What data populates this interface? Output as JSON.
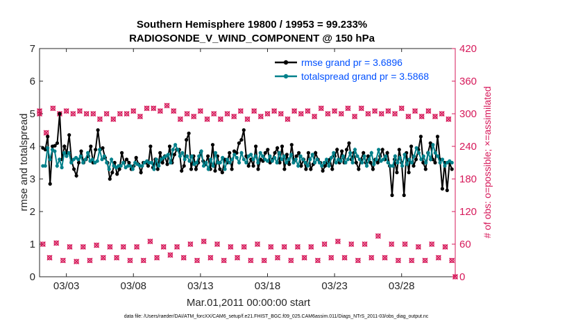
{
  "chart_data": {
    "type": "line",
    "title_line1": "Southern Hemisphere 19800 / 19953 = 99.233%",
    "title_line2": "RADIOSONDE_V_WIND_COMPONENT @ 150 hPa",
    "xlabel": "Mar.01,2011 00:00:00 start",
    "ylabel_left": "rmse and totalspread",
    "ylabel_right": "# of obs: o=possible; ×=assimilated",
    "footnote": "data file: /Users/raeder/DAI/ATM_forcXX/CAM6_setup/f.e21.FHIST_BGC.f09_025.CAM6assim.011/Diags_NTrS_2011-03/obs_diag_output.nc",
    "x_ticks": [
      {
        "day": 3,
        "label": "03/03"
      },
      {
        "day": 8,
        "label": "03/08"
      },
      {
        "day": 13,
        "label": "03/13"
      },
      {
        "day": 18,
        "label": "03/18"
      },
      {
        "day": 23,
        "label": "03/23"
      },
      {
        "day": 28,
        "label": "03/28"
      }
    ],
    "xlim": [
      1,
      32
    ],
    "ylim_left": [
      0,
      7
    ],
    "yticks_left": [
      "0",
      "1",
      "2",
      "3",
      "4",
      "5",
      "6",
      "7"
    ],
    "ylim_right": [
      0,
      420
    ],
    "yticks_right": [
      "0",
      "60",
      "120",
      "180",
      "240",
      "300",
      "360",
      "420"
    ],
    "legend": [
      {
        "label": "rmse grand pr = 3.6896",
        "color": "#000000"
      },
      {
        "label": "totalspread grand pr = 3.5868",
        "color": "#00808a"
      }
    ],
    "series": [
      {
        "name": "rmse",
        "color": "#000000",
        "values": [
          3.95,
          3.9,
          4.3,
          2.85,
          4.0,
          4.02,
          4.1,
          5.0,
          3.6,
          4.0,
          3.8,
          4.35,
          3.55,
          3.3,
          3.1,
          3.5,
          3.85,
          3.5,
          3.6,
          3.7,
          4.0,
          3.5,
          3.9,
          4.5,
          3.9,
          3.95,
          3.65,
          3.5,
          3.0,
          3.2,
          3.5,
          3.15,
          3.3,
          3.8,
          3.5,
          3.6,
          3.5,
          3.3,
          3.4,
          3.65,
          3.45,
          3.2,
          3.5,
          3.5,
          3.4,
          4.0,
          3.35,
          3.6,
          3.3,
          3.8,
          3.5,
          3.7,
          3.45,
          4.0,
          3.5,
          3.75,
          3.9,
          3.9,
          3.25,
          3.4,
          4.2,
          4.4,
          3.3,
          3.7,
          3.3,
          3.5,
          3.8,
          3.55,
          3.45,
          3.7,
          3.3,
          4.05,
          3.25,
          3.7,
          3.3,
          3.2,
          3.6,
          3.5,
          3.8,
          3.3,
          3.85,
          3.8,
          4.1,
          4.2,
          4.5,
          3.7,
          3.4,
          3.6,
          3.4,
          4.0,
          3.3,
          3.6,
          3.55,
          3.8,
          3.9,
          3.5,
          3.6,
          3.8,
          3.95,
          3.5,
          4.0,
          3.3,
          3.75,
          3.45,
          4.05,
          3.55,
          3.7,
          3.8,
          3.4,
          3.6,
          3.3,
          3.8,
          3.3,
          3.45,
          3.8,
          3.6,
          3.5,
          3.25,
          3.4,
          3.5,
          3.6,
          3.3,
          3.7,
          3.9,
          3.5,
          3.85,
          3.5,
          3.9,
          4.1,
          3.6,
          3.8,
          3.5,
          3.3,
          3.6,
          3.8,
          3.5,
          3.7,
          3.5,
          3.3,
          3.6,
          3.5,
          3.7,
          3.9,
          3.6,
          3.8,
          3.4,
          2.5,
          3.6,
          3.2,
          3.9,
          3.5,
          2.5,
          3.8,
          3.2,
          4.0,
          3.4,
          3.6,
          3.9,
          4.3,
          3.5,
          3.3,
          3.8,
          4.1,
          3.6,
          3.5,
          4.3,
          3.6,
          2.7,
          3.5,
          2.65,
          3.5,
          3.3
        ]
      },
      {
        "name": "totalspread",
        "color": "#00808a",
        "values": [
          3.4,
          3.4,
          3.95,
          3.6,
          3.9,
          3.85,
          3.4,
          3.6,
          3.35,
          3.8,
          3.7,
          3.8,
          3.5,
          3.6,
          3.65,
          3.6,
          3.7,
          3.5,
          3.6,
          3.8,
          3.55,
          3.6,
          3.5,
          3.55,
          3.9,
          3.6,
          3.7,
          3.5,
          3.3,
          3.6,
          3.4,
          3.35,
          3.4,
          3.4,
          3.5,
          3.35,
          3.4,
          3.4,
          3.3,
          3.5,
          3.45,
          3.4,
          3.4,
          3.5,
          3.55,
          3.5,
          3.5,
          3.3,
          3.6,
          3.4,
          3.6,
          3.65,
          3.7,
          3.75,
          3.5,
          3.9,
          4.05,
          3.9,
          3.7,
          3.8,
          3.6,
          3.7,
          3.55,
          3.7,
          3.45,
          3.5,
          3.7,
          3.85,
          3.4,
          3.5,
          3.3,
          3.6,
          3.4,
          3.8,
          3.5,
          3.5,
          3.65,
          3.3,
          3.6,
          3.5,
          3.6,
          3.75,
          3.65,
          3.5,
          3.8,
          3.6,
          3.5,
          3.7,
          3.75,
          3.6,
          3.7,
          3.5,
          3.8,
          3.7,
          3.6,
          3.55,
          3.7,
          3.55,
          3.65,
          3.5,
          3.8,
          3.6,
          3.7,
          3.5,
          3.6,
          3.75,
          3.5,
          3.6,
          3.4,
          3.7,
          3.6,
          3.5,
          3.4,
          3.6,
          3.75,
          3.5,
          3.6,
          3.5,
          3.4,
          3.5,
          3.6,
          3.4,
          3.65,
          3.8,
          3.5,
          3.6,
          3.55,
          3.7,
          3.5,
          3.6,
          3.8,
          3.5,
          3.9,
          3.7,
          3.6,
          3.5,
          3.7,
          3.4,
          3.6,
          3.8,
          3.45,
          3.6,
          3.9,
          3.55,
          3.6,
          3.7,
          3.5,
          3.4,
          3.4,
          3.7,
          3.5,
          3.65,
          3.4,
          3.75,
          3.45,
          3.6,
          3.5,
          3.7,
          3.95,
          3.8,
          3.6,
          3.7,
          3.5,
          3.8,
          3.6,
          4.05,
          3.8,
          3.7,
          3.5,
          3.6,
          3.4,
          3.5,
          3.55,
          3.5
        ]
      }
    ],
    "obs_points": [
      {
        "day": 1.0,
        "count": 305
      },
      {
        "day": 1.0,
        "count": 300
      },
      {
        "day": 1.25,
        "count": 60
      },
      {
        "day": 1.5,
        "count": 265
      },
      {
        "day": 1.75,
        "count": 35
      },
      {
        "day": 2.0,
        "count": 310
      },
      {
        "day": 2.25,
        "count": 62
      },
      {
        "day": 2.5,
        "count": 300
      },
      {
        "day": 2.75,
        "count": 30
      },
      {
        "day": 3.0,
        "count": 305
      },
      {
        "day": 3.25,
        "count": 55
      },
      {
        "day": 3.5,
        "count": 300
      },
      {
        "day": 3.75,
        "count": 28
      },
      {
        "day": 4.0,
        "count": 305
      },
      {
        "day": 4.25,
        "count": 55
      },
      {
        "day": 4.5,
        "count": 300
      },
      {
        "day": 4.75,
        "count": 30
      },
      {
        "day": 5.0,
        "count": 300
      },
      {
        "day": 5.25,
        "count": 58
      },
      {
        "day": 5.5,
        "count": 290
      },
      {
        "day": 5.75,
        "count": 35
      },
      {
        "day": 6.0,
        "count": 300
      },
      {
        "day": 6.25,
        "count": 55
      },
      {
        "day": 6.5,
        "count": 290
      },
      {
        "day": 6.75,
        "count": 35
      },
      {
        "day": 7.0,
        "count": 300
      },
      {
        "day": 7.25,
        "count": 55
      },
      {
        "day": 7.5,
        "count": 300
      },
      {
        "day": 7.75,
        "count": 30
      },
      {
        "day": 8.0,
        "count": 305
      },
      {
        "day": 8.25,
        "count": 55
      },
      {
        "day": 8.5,
        "count": 295
      },
      {
        "day": 8.75,
        "count": 30
      },
      {
        "day": 9.0,
        "count": 310
      },
      {
        "day": 9.25,
        "count": 65
      },
      {
        "day": 9.5,
        "count": 310
      },
      {
        "day": 9.75,
        "count": 35
      },
      {
        "day": 10.0,
        "count": 305
      },
      {
        "day": 10.25,
        "count": 55
      },
      {
        "day": 10.5,
        "count": 315
      },
      {
        "day": 10.75,
        "count": 40
      },
      {
        "day": 11.0,
        "count": 305
      },
      {
        "day": 11.25,
        "count": 55
      },
      {
        "day": 11.5,
        "count": 290
      },
      {
        "day": 11.75,
        "count": 35
      },
      {
        "day": 12.0,
        "count": 300
      },
      {
        "day": 12.25,
        "count": 60
      },
      {
        "day": 12.5,
        "count": 295
      },
      {
        "day": 12.75,
        "count": 30
      },
      {
        "day": 13.0,
        "count": 305
      },
      {
        "day": 13.25,
        "count": 65
      },
      {
        "day": 13.5,
        "count": 290
      },
      {
        "day": 13.75,
        "count": 35
      },
      {
        "day": 14.0,
        "count": 300
      },
      {
        "day": 14.25,
        "count": 60
      },
      {
        "day": 14.5,
        "count": 290
      },
      {
        "day": 14.75,
        "count": 30
      },
      {
        "day": 15.0,
        "count": 300
      },
      {
        "day": 15.25,
        "count": 55
      },
      {
        "day": 15.5,
        "count": 295
      },
      {
        "day": 15.75,
        "count": 35
      },
      {
        "day": 16.0,
        "count": 305
      },
      {
        "day": 16.25,
        "count": 55
      },
      {
        "day": 16.5,
        "count": 290
      },
      {
        "day": 16.75,
        "count": 30
      },
      {
        "day": 17.0,
        "count": 305
      },
      {
        "day": 17.25,
        "count": 60
      },
      {
        "day": 17.5,
        "count": 295
      },
      {
        "day": 17.75,
        "count": 30
      },
      {
        "day": 18.0,
        "count": 300
      },
      {
        "day": 18.25,
        "count": 55
      },
      {
        "day": 18.5,
        "count": 305
      },
      {
        "day": 18.75,
        "count": 35
      },
      {
        "day": 19.0,
        "count": 300
      },
      {
        "day": 19.25,
        "count": 55
      },
      {
        "day": 19.5,
        "count": 290
      },
      {
        "day": 19.75,
        "count": 30
      },
      {
        "day": 20.0,
        "count": 305
      },
      {
        "day": 20.25,
        "count": 55
      },
      {
        "day": 20.5,
        "count": 300
      },
      {
        "day": 20.75,
        "count": 35
      },
      {
        "day": 21.0,
        "count": 305
      },
      {
        "day": 21.25,
        "count": 55
      },
      {
        "day": 21.5,
        "count": 295
      },
      {
        "day": 21.75,
        "count": 30
      },
      {
        "day": 22.0,
        "count": 310
      },
      {
        "day": 22.25,
        "count": 60
      },
      {
        "day": 22.5,
        "count": 300
      },
      {
        "day": 22.75,
        "count": 35
      },
      {
        "day": 23.0,
        "count": 305
      },
      {
        "day": 23.25,
        "count": 65
      },
      {
        "day": 23.5,
        "count": 300
      },
      {
        "day": 23.75,
        "count": 35
      },
      {
        "day": 24.0,
        "count": 310
      },
      {
        "day": 24.25,
        "count": 60
      },
      {
        "day": 24.5,
        "count": 295
      },
      {
        "day": 24.75,
        "count": 30
      },
      {
        "day": 25.0,
        "count": 310
      },
      {
        "day": 25.25,
        "count": 60
      },
      {
        "day": 25.5,
        "count": 300
      },
      {
        "day": 25.75,
        "count": 35
      },
      {
        "day": 26.0,
        "count": 305
      },
      {
        "day": 26.25,
        "count": 75
      },
      {
        "day": 26.5,
        "count": 300
      },
      {
        "day": 26.75,
        "count": 35
      },
      {
        "day": 27.0,
        "count": 305
      },
      {
        "day": 27.25,
        "count": 60
      },
      {
        "day": 27.5,
        "count": 300
      },
      {
        "day": 27.75,
        "count": 30
      },
      {
        "day": 28.0,
        "count": 310
      },
      {
        "day": 28.25,
        "count": 60
      },
      {
        "day": 28.5,
        "count": 295
      },
      {
        "day": 28.75,
        "count": 30
      },
      {
        "day": 29.0,
        "count": 305
      },
      {
        "day": 29.25,
        "count": 55
      },
      {
        "day": 29.5,
        "count": 295
      },
      {
        "day": 29.75,
        "count": 30
      },
      {
        "day": 30.0,
        "count": 305
      },
      {
        "day": 30.25,
        "count": 60
      },
      {
        "day": 30.5,
        "count": 295
      },
      {
        "day": 30.75,
        "count": 35
      },
      {
        "day": 31.0,
        "count": 300
      },
      {
        "day": 31.25,
        "count": 55
      },
      {
        "day": 31.5,
        "count": 290
      },
      {
        "day": 31.75,
        "count": 30
      },
      {
        "day": 32.0,
        "count": 0
      }
    ],
    "color_obs": "#d6195a"
  }
}
